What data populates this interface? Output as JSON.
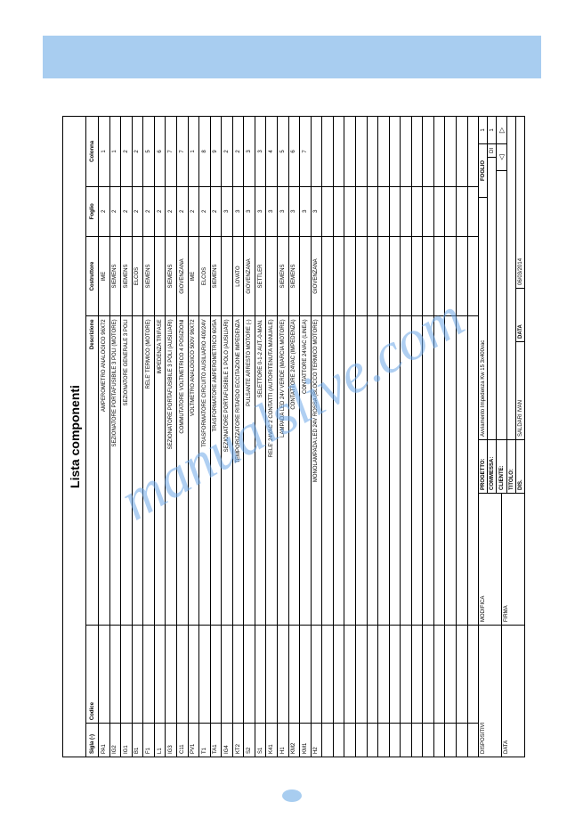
{
  "watermark": "manualslive.com",
  "title": "Lista componenti",
  "columns": {
    "sigla": "Sigla (-)",
    "codice": "Codice",
    "descrizione": "Descrizione",
    "costruttore": "Costruttore",
    "foglio": "Foglio",
    "colonna": "Colonna"
  },
  "rows": [
    {
      "sigla": "PA1",
      "codice": "",
      "desc": "AMPEROMETRO ANALOGICO 96X72",
      "costr": "IME",
      "foglio": "2",
      "col": "1"
    },
    {
      "sigla": "IG2",
      "codice": "",
      "desc": "SEZIONATORE PORTAFUSIBILE 3 POLI (MOTORE)",
      "costr": "SIEMENS",
      "foglio": "2",
      "col": "1"
    },
    {
      "sigla": "IG1",
      "codice": "",
      "desc": "SEZIONATORE GENERALE 3 POLI",
      "costr": "SIEMENS",
      "foglio": "2",
      "col": "2"
    },
    {
      "sigla": "B1",
      "codice": "",
      "desc": "",
      "costr": "ELCOS",
      "foglio": "2",
      "col": "2"
    },
    {
      "sigla": "F1",
      "codice": "",
      "desc": "RELE' TERMICO (MOTORE)",
      "costr": "SIEMENS",
      "foglio": "2",
      "col": "5"
    },
    {
      "sigla": "L1",
      "codice": "",
      "desc": "IMPEDENZA TRIFASE",
      "costr": "",
      "foglio": "2",
      "col": "6"
    },
    {
      "sigla": "IG3",
      "codice": "",
      "desc": "SEZIONATORE PORTAFUSIBILE 3 POLI (AUSILIARI)",
      "costr": "SIEMENS",
      "foglio": "2",
      "col": "7"
    },
    {
      "sigla": "C11",
      "codice": "",
      "desc": "COMMUTATORE VOLTMETRICO 4 POSIZIONI",
      "costr": "GIOVENZANA",
      "foglio": "2",
      "col": "7"
    },
    {
      "sigla": "PV1",
      "codice": "",
      "desc": "VOLTMETRO ANALOGICO 500V 96X72",
      "costr": "IME",
      "foglio": "2",
      "col": "1"
    },
    {
      "sigla": "T1",
      "codice": "",
      "desc": "TRASFORMATORE CIRCUITO AUSILIARIO 400/24V",
      "costr": "ELCOS",
      "foglio": "2",
      "col": "8"
    },
    {
      "sigla": "TA1",
      "codice": "",
      "desc": "TRASFORMATORE AMPEROMETRICO 60/5A",
      "costr": "SIEMENS",
      "foglio": "2",
      "col": "9"
    },
    {
      "sigla": "IG4",
      "codice": "",
      "desc": "SEZIONATORE PORTAFUSIBILE 1 POLO (AUSILIARI)",
      "costr": "",
      "foglio": "3",
      "col": "2"
    },
    {
      "sigla": "KT2",
      "codice": "",
      "desc": "TEMPORIZZATORE RITARDO ECCITAZIONE IMPEDENZA",
      "costr": "LOVATO",
      "foglio": "3",
      "col": "2"
    },
    {
      "sigla": "S2",
      "codice": "",
      "desc": "PULSANTE ARRESTO MOTORE (-)",
      "costr": "GIOVENZANA",
      "foglio": "3",
      "col": "3"
    },
    {
      "sigla": "S1",
      "codice": "",
      "desc": "SELETTORE 0-1-2 AUT.-0-MAN.",
      "costr": "SETTLER",
      "foglio": "3",
      "col": "3"
    },
    {
      "sigla": "K41",
      "codice": "",
      "desc": "RELE' 24VAC 2 CONTATTI (AUTORITENUTA MANUALE)",
      "costr": "",
      "foglio": "3",
      "col": "4"
    },
    {
      "sigla": "H1",
      "codice": "",
      "desc": "LAMPADA LED 24V VERDE (MARCIA MOTORE)",
      "costr": "SIEMENS",
      "foglio": "3",
      "col": "5"
    },
    {
      "sigla": "KM2",
      "codice": "",
      "desc": "CONTATTORE 24VAC (IMPEDENZA)",
      "costr": "SIEMENS",
      "foglio": "3",
      "col": "6"
    },
    {
      "sigla": "KM1",
      "codice": "",
      "desc": "CONTATTORE 24VAC (LINEA)",
      "costr": "",
      "foglio": "3",
      "col": "7"
    },
    {
      "sigla": "H2",
      "codice": "",
      "desc": "MONOLAMPADA LED 24V ROSSA (BLOCCO TERMICO MOTORE)",
      "costr": "GIOVENZANA",
      "foglio": "3",
      "col": ""
    },
    {
      "sigla": "",
      "codice": "",
      "desc": "",
      "costr": "",
      "foglio": "",
      "col": ""
    },
    {
      "sigla": "",
      "codice": "",
      "desc": "",
      "costr": "",
      "foglio": "",
      "col": ""
    },
    {
      "sigla": "",
      "codice": "",
      "desc": "",
      "costr": "",
      "foglio": "",
      "col": ""
    },
    {
      "sigla": "",
      "codice": "",
      "desc": "",
      "costr": "",
      "foglio": "",
      "col": ""
    },
    {
      "sigla": "",
      "codice": "",
      "desc": "",
      "costr": "",
      "foglio": "",
      "col": ""
    },
    {
      "sigla": "",
      "codice": "",
      "desc": "",
      "costr": "",
      "foglio": "",
      "col": ""
    },
    {
      "sigla": "",
      "codice": "",
      "desc": "",
      "costr": "",
      "foglio": "",
      "col": ""
    },
    {
      "sigla": "",
      "codice": "",
      "desc": "",
      "costr": "",
      "foglio": "",
      "col": ""
    },
    {
      "sigla": "",
      "codice": "",
      "desc": "",
      "costr": "",
      "foglio": "",
      "col": ""
    },
    {
      "sigla": "",
      "codice": "",
      "desc": "",
      "costr": "",
      "foglio": "",
      "col": ""
    },
    {
      "sigla": "",
      "codice": "",
      "desc": "",
      "costr": "",
      "foglio": "",
      "col": ""
    },
    {
      "sigla": "",
      "codice": "",
      "desc": "",
      "costr": "",
      "foglio": "",
      "col": ""
    },
    {
      "sigla": "",
      "codice": "",
      "desc": "",
      "costr": "",
      "foglio": "",
      "col": ""
    },
    {
      "sigla": "",
      "codice": "",
      "desc": "",
      "costr": "",
      "foglio": "",
      "col": ""
    }
  ],
  "footer": {
    "dispositivi": "DISPOSITIVI",
    "data": "DATA",
    "modifica": "MODIFICA",
    "firma": "FIRMA",
    "progetto_lab": "PROGETTO:",
    "progetto_val": "Avviamento Impedenza Kw 15 3x400vac",
    "commessa_lab": "COMMESSA:",
    "commessa_val": "",
    "cliente_lab": "CLIENTE:",
    "cliente_val": "",
    "titolo_lab": "TITOLO:",
    "titolo_val": "",
    "dis_lab": "DIS.",
    "dis_val": "SALDARI IVAN",
    "data2_lab": "DATA",
    "data2_val": "06/03/2014",
    "foglio_lab": "FOGLIO",
    "foglio_num": "1",
    "di": "DI",
    "foglio_tot": "1",
    "nav_prev": "◁",
    "nav_next": "▷"
  }
}
